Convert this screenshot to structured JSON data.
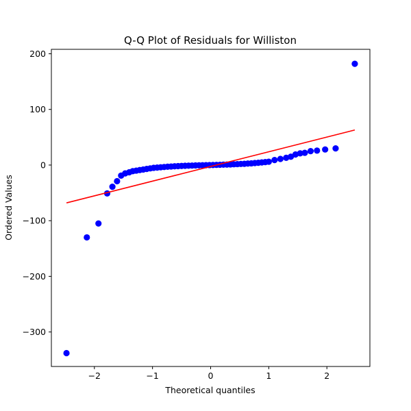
{
  "chart_data": {
    "type": "scatter",
    "title": "Q-Q Plot of Residuals for Williston",
    "xlabel": "Theoretical quantiles",
    "ylabel": "Ordered Values",
    "xlim": [
      -2.74,
      2.74
    ],
    "ylim": [
      -362,
      208
    ],
    "xticks": [
      -2,
      -1,
      0,
      1,
      2
    ],
    "xtick_labels": [
      "−2",
      "−1",
      "0",
      "1",
      "2"
    ],
    "yticks": [
      -300,
      -200,
      -100,
      0,
      100,
      200
    ],
    "ytick_labels": [
      "−300",
      "−200",
      "−100",
      "0",
      "100",
      "200"
    ],
    "grid": false,
    "colors": {
      "points": "#0000ff",
      "fit_line": "#ff0000"
    },
    "fit_line": {
      "x": [
        -2.48,
        2.48
      ],
      "y": [
        -68,
        63
      ]
    },
    "points": [
      {
        "x": -2.48,
        "y": -338
      },
      {
        "x": -2.13,
        "y": -130
      },
      {
        "x": -1.93,
        "y": -105
      },
      {
        "x": -1.78,
        "y": -51
      },
      {
        "x": -1.69,
        "y": -39
      },
      {
        "x": -1.61,
        "y": -29
      },
      {
        "x": -1.54,
        "y": -19
      },
      {
        "x": -1.47,
        "y": -15
      },
      {
        "x": -1.4,
        "y": -13
      },
      {
        "x": -1.34,
        "y": -11
      },
      {
        "x": -1.28,
        "y": -10
      },
      {
        "x": -1.22,
        "y": -9
      },
      {
        "x": -1.16,
        "y": -8
      },
      {
        "x": -1.1,
        "y": -7
      },
      {
        "x": -1.04,
        "y": -6
      },
      {
        "x": -0.98,
        "y": -5
      },
      {
        "x": -0.92,
        "y": -4.5
      },
      {
        "x": -0.86,
        "y": -4
      },
      {
        "x": -0.8,
        "y": -3.5
      },
      {
        "x": -0.74,
        "y": -3
      },
      {
        "x": -0.68,
        "y": -2.6
      },
      {
        "x": -0.62,
        "y": -2.2
      },
      {
        "x": -0.56,
        "y": -1.9
      },
      {
        "x": -0.5,
        "y": -1.6
      },
      {
        "x": -0.44,
        "y": -1.3
      },
      {
        "x": -0.38,
        "y": -1.1
      },
      {
        "x": -0.32,
        "y": -0.9
      },
      {
        "x": -0.26,
        "y": -0.7
      },
      {
        "x": -0.2,
        "y": -0.5
      },
      {
        "x": -0.14,
        "y": -0.3
      },
      {
        "x": -0.08,
        "y": -0.2
      },
      {
        "x": -0.02,
        "y": 0
      },
      {
        "x": 0.04,
        "y": 0.1
      },
      {
        "x": 0.1,
        "y": 0.3
      },
      {
        "x": 0.16,
        "y": 0.5
      },
      {
        "x": 0.22,
        "y": 0.7
      },
      {
        "x": 0.28,
        "y": 0.9
      },
      {
        "x": 0.34,
        "y": 1.1
      },
      {
        "x": 0.4,
        "y": 1.4
      },
      {
        "x": 0.46,
        "y": 1.7
      },
      {
        "x": 0.52,
        "y": 2
      },
      {
        "x": 0.58,
        "y": 2.3
      },
      {
        "x": 0.64,
        "y": 2.7
      },
      {
        "x": 0.7,
        "y": 3.1
      },
      {
        "x": 0.76,
        "y": 3.6
      },
      {
        "x": 0.82,
        "y": 4.1
      },
      {
        "x": 0.88,
        "y": 4.7
      },
      {
        "x": 0.94,
        "y": 5.3
      },
      {
        "x": 1.0,
        "y": 6
      },
      {
        "x": 1.1,
        "y": 9
      },
      {
        "x": 1.2,
        "y": 11
      },
      {
        "x": 1.3,
        "y": 13
      },
      {
        "x": 1.38,
        "y": 15
      },
      {
        "x": 1.46,
        "y": 19
      },
      {
        "x": 1.54,
        "y": 21
      },
      {
        "x": 1.62,
        "y": 22
      },
      {
        "x": 1.72,
        "y": 25
      },
      {
        "x": 1.83,
        "y": 26
      },
      {
        "x": 1.97,
        "y": 28
      },
      {
        "x": 2.15,
        "y": 30
      },
      {
        "x": 2.48,
        "y": 182
      }
    ]
  }
}
